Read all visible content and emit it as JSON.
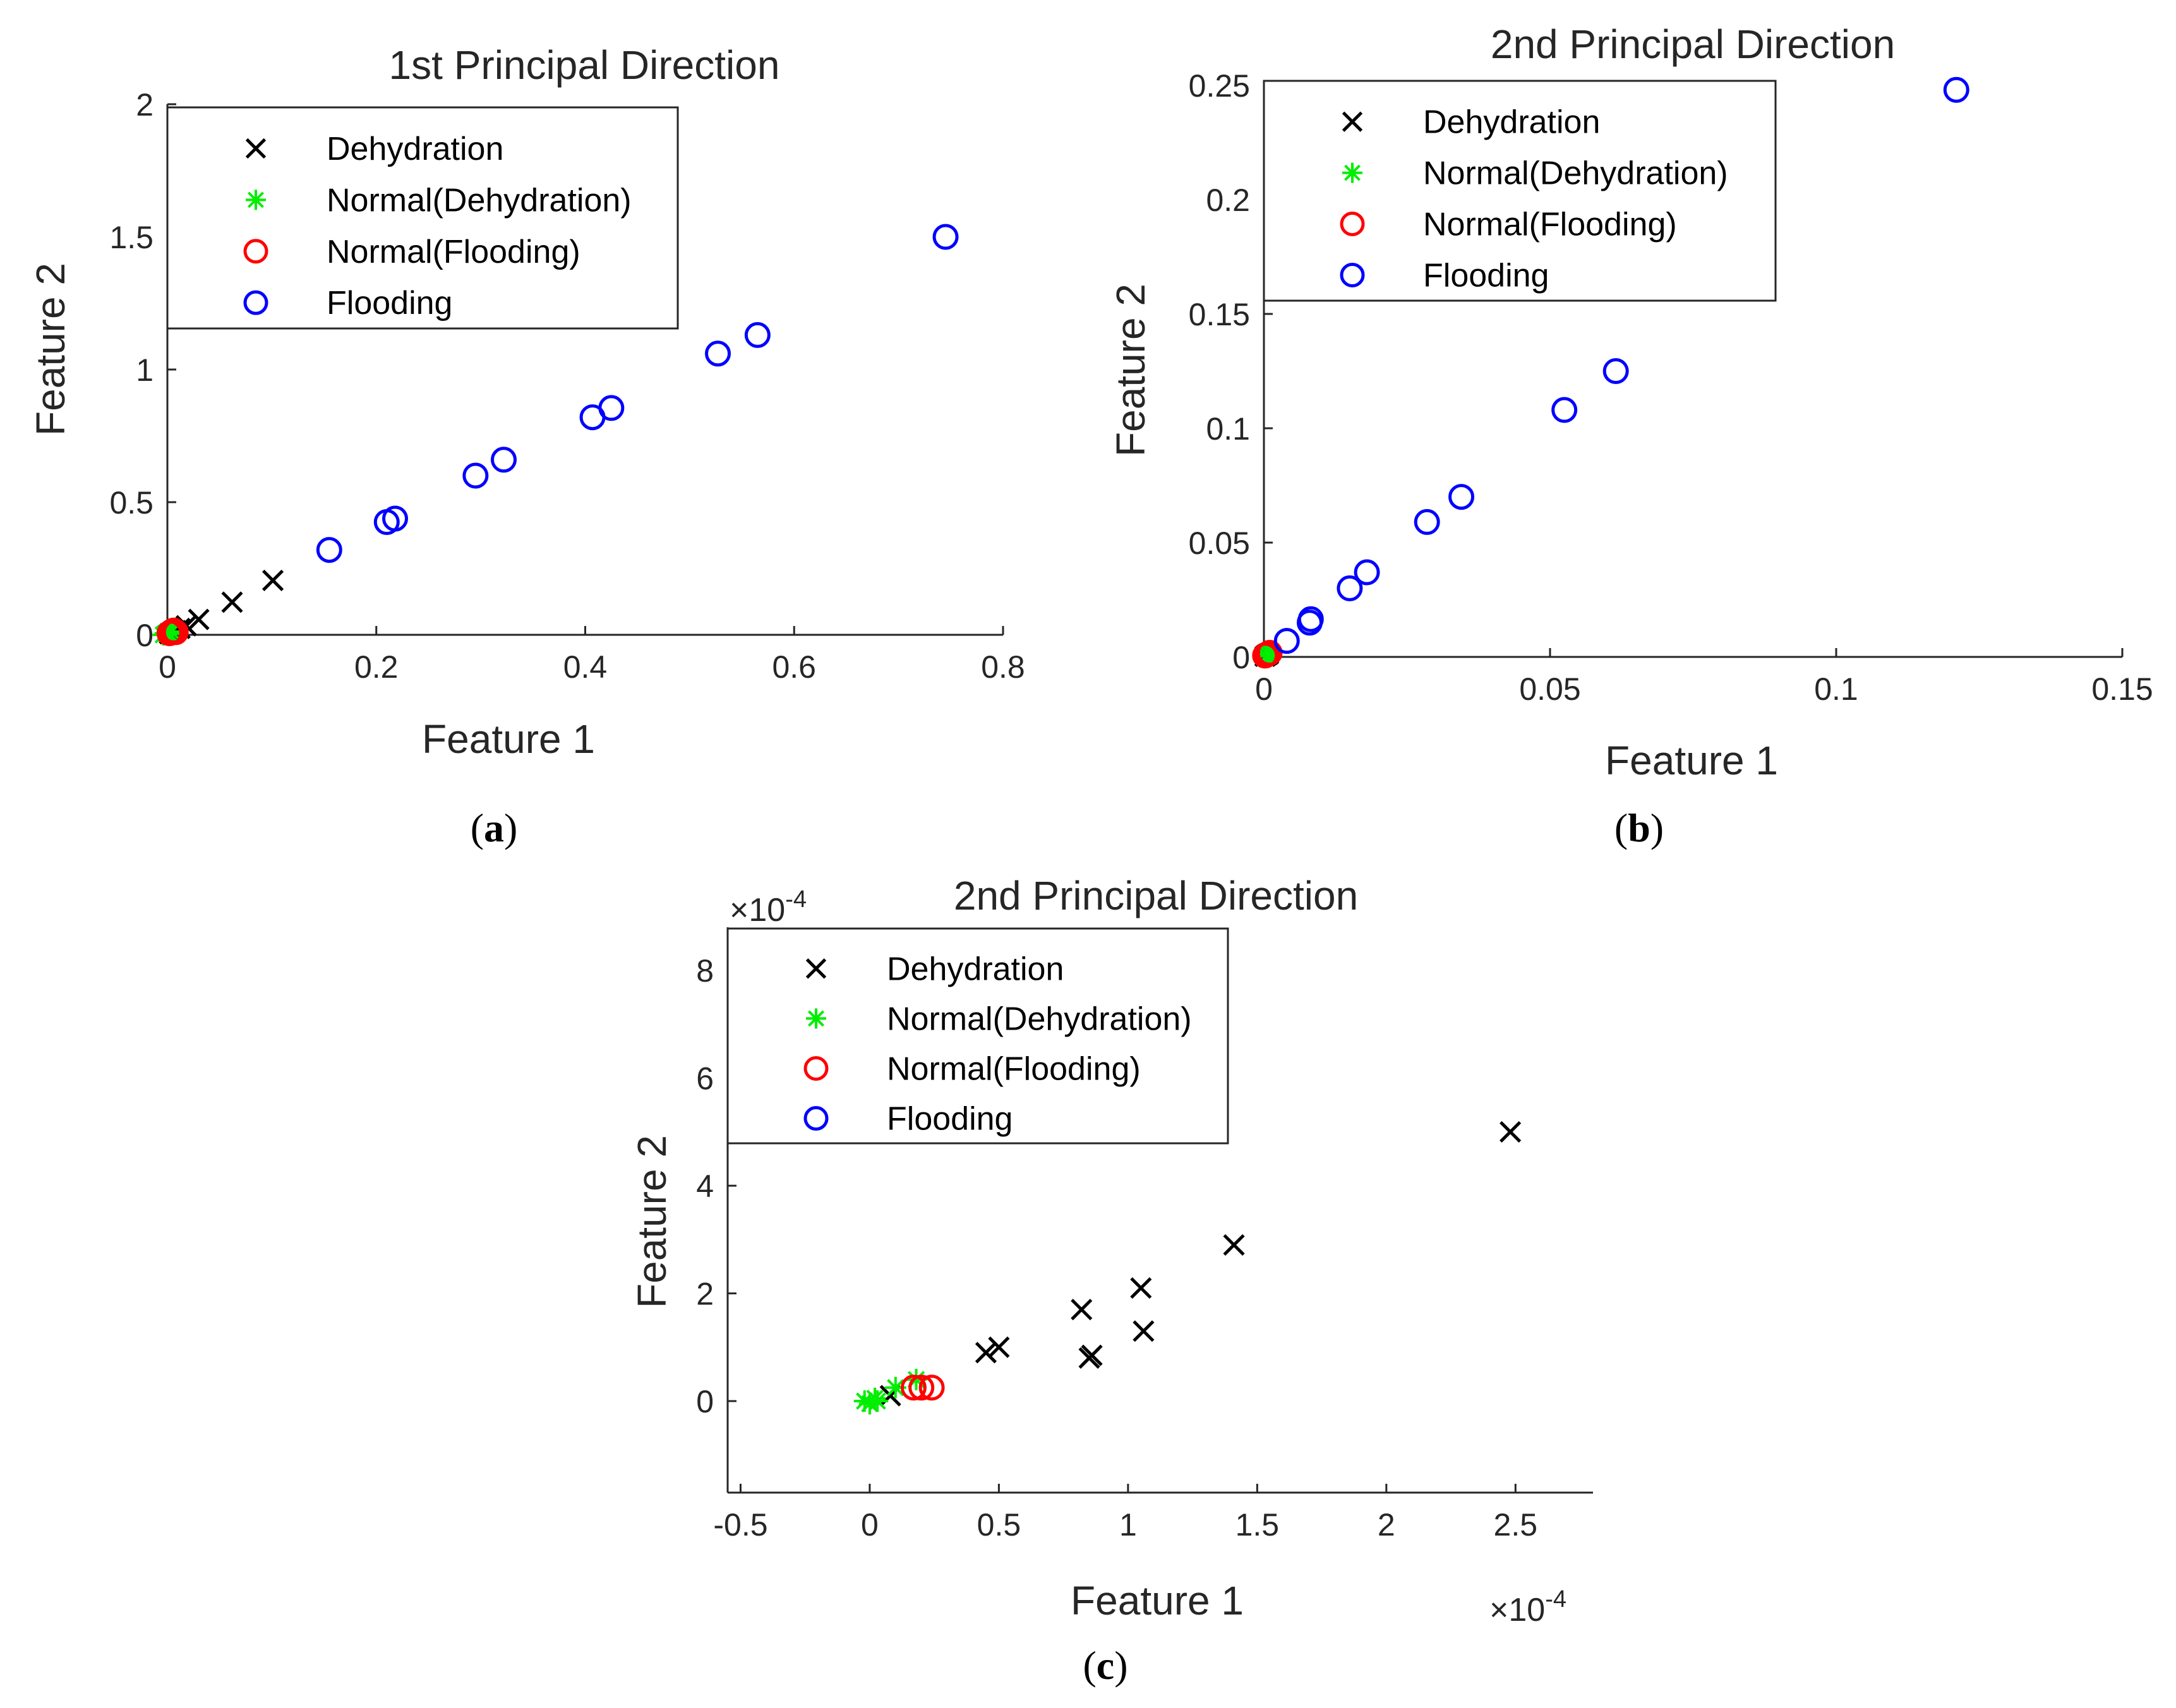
{
  "colors": {
    "dehydration": "#000000",
    "normal_dehydration": "#00ee00",
    "normal_flooding": "#ff0000",
    "flooding": "#0000ff",
    "axis": "#262626",
    "text": "#262626"
  },
  "panels": [
    {
      "id": "a",
      "label_prefix": "(",
      "label_letter": "a",
      "label_suffix": ")"
    },
    {
      "id": "b",
      "label_prefix": "(",
      "label_letter": "b",
      "label_suffix": ")"
    },
    {
      "id": "c",
      "label_prefix": "(",
      "label_letter": "c",
      "label_suffix": ")"
    }
  ],
  "chart_data": [
    {
      "type": "scatter",
      "title": "1st Principal Direction",
      "xlabel": "Feature 1",
      "ylabel": "Feature 2",
      "xlim": [
        0,
        0.8
      ],
      "ylim": [
        0,
        2
      ],
      "xticks": [
        0,
        0.2,
        0.4,
        0.6,
        0.8
      ],
      "xtick_labels": [
        "0",
        "0.2",
        "0.4",
        "0.6",
        "0.8"
      ],
      "yticks": [
        0,
        0.5,
        1,
        1.5,
        2
      ],
      "ytick_labels": [
        "0",
        "0.5",
        "1",
        "1.5",
        "2"
      ],
      "box": "open",
      "legend_location": "top-left",
      "series": [
        {
          "name": "Dehydration",
          "marker": "x",
          "color_key": "dehydration",
          "x": [
            0.002,
            0.005,
            0.008,
            0.012,
            0.018,
            0.03,
            0.062,
            0.101
          ],
          "y": [
            0.004,
            0.009,
            0.016,
            0.024,
            0.034,
            0.058,
            0.123,
            0.205
          ]
        },
        {
          "name": "Normal(Dehydration)",
          "marker": "asterisk",
          "color_key": "normal_dehydration",
          "x": [
            -0.004,
            -0.002,
            0.0,
            0.002,
            0.004
          ],
          "y": [
            0.0,
            0.006,
            0.01,
            0.004,
            0.012
          ]
        },
        {
          "name": "Normal(Flooding)",
          "marker": "circle",
          "color_key": "normal_flooding",
          "x": [
            0.002,
            0.004,
            0.006,
            0.008
          ],
          "y": [
            0.006,
            0.012,
            0.016,
            0.01
          ]
        },
        {
          "name": "Flooding",
          "marker": "circle",
          "color_key": "flooding",
          "x": [
            0.155,
            0.21,
            0.218,
            0.295,
            0.322,
            0.407,
            0.425,
            0.527,
            0.565,
            0.745
          ],
          "y": [
            0.32,
            0.425,
            0.438,
            0.6,
            0.66,
            0.82,
            0.855,
            1.06,
            1.13,
            1.5
          ]
        }
      ]
    },
    {
      "type": "scatter",
      "title": "2nd Principal Direction",
      "xlabel": "Feature 1",
      "ylabel": "Feature 2",
      "xlim": [
        0,
        0.15
      ],
      "ylim": [
        0,
        0.25
      ],
      "xticks": [
        0,
        0.05,
        0.1,
        0.15
      ],
      "xtick_labels": [
        "0",
        "0.05",
        "0.1",
        "0.15"
      ],
      "yticks": [
        0,
        0.05,
        0.1,
        0.15,
        0.2,
        0.25
      ],
      "ytick_labels": [
        "0",
        "0.05",
        "0.1",
        "0.15",
        "0.2",
        "0.25"
      ],
      "box": "open",
      "legend_location": "top-left",
      "series": [
        {
          "name": "Dehydration",
          "marker": "x",
          "color_key": "dehydration",
          "x": [
            0.0002,
            0.0004,
            0.0006,
            0.0008
          ],
          "y": [
            0.0003,
            0.0007,
            0.001,
            0.0013
          ]
        },
        {
          "name": "Normal(Dehydration)",
          "marker": "asterisk",
          "color_key": "normal_dehydration",
          "x": [
            0.0004,
            0.0008,
            0.0012
          ],
          "y": [
            0.0004,
            0.001,
            0.0016
          ]
        },
        {
          "name": "Normal(Flooding)",
          "marker": "circle",
          "color_key": "normal_flooding",
          "x": [
            0.0002,
            0.0006,
            0.001
          ],
          "y": [
            0.0006,
            0.0012,
            0.0018
          ]
        },
        {
          "name": "Flooding",
          "marker": "circle",
          "color_key": "flooding",
          "x": [
            0.004,
            0.008,
            0.0082,
            0.015,
            0.018,
            0.0285,
            0.0345,
            0.0525,
            0.0615,
            0.121
          ],
          "y": [
            0.007,
            0.015,
            0.0165,
            0.03,
            0.037,
            0.059,
            0.07,
            0.108,
            0.125,
            0.248
          ]
        }
      ]
    },
    {
      "type": "scatter",
      "title": "2nd Principal Direction",
      "xlabel": "Feature 1",
      "ylabel": "Feature 2",
      "xlim": [
        -0.55,
        2.8
      ],
      "ylim": [
        -1.7,
        8.8
      ],
      "xticks": [
        -0.5,
        0,
        0.5,
        1,
        1.5,
        2,
        2.5
      ],
      "xtick_labels": [
        "-0.5",
        "0",
        "0.5",
        "1",
        "1.5",
        "2",
        "2.5"
      ],
      "yticks": [
        0,
        2,
        4,
        6,
        8
      ],
      "ytick_labels": [
        "0",
        "2",
        "4",
        "6",
        "8"
      ],
      "x_exponent_prefix": "×10",
      "x_exponent": "-4",
      "y_exponent_prefix": "×10",
      "y_exponent": "-4",
      "box": "open",
      "legend_location": "top-left",
      "series": [
        {
          "name": "Dehydration",
          "marker": "x",
          "color_key": "dehydration",
          "x": [
            0.08,
            0.45,
            0.5,
            0.82,
            0.85,
            0.86,
            1.05,
            1.06,
            1.41,
            2.48
          ],
          "y": [
            0.1,
            0.9,
            1.0,
            1.7,
            0.8,
            0.85,
            2.1,
            1.3,
            2.9,
            5.0
          ]
        },
        {
          "name": "Normal(Dehydration)",
          "marker": "asterisk",
          "color_key": "normal_dehydration",
          "x": [
            -0.02,
            0.0,
            0.02,
            0.03,
            0.1,
            0.18
          ],
          "y": [
            0.0,
            -0.05,
            0.05,
            0.0,
            0.25,
            0.4
          ]
        },
        {
          "name": "Normal(Flooding)",
          "marker": "circle",
          "color_key": "normal_flooding",
          "x": [
            0.17,
            0.2,
            0.24
          ],
          "y": [
            0.25,
            0.25,
            0.25
          ]
        },
        {
          "name": "Flooding",
          "marker": "circle",
          "color_key": "flooding",
          "x": [],
          "y": []
        }
      ]
    }
  ]
}
